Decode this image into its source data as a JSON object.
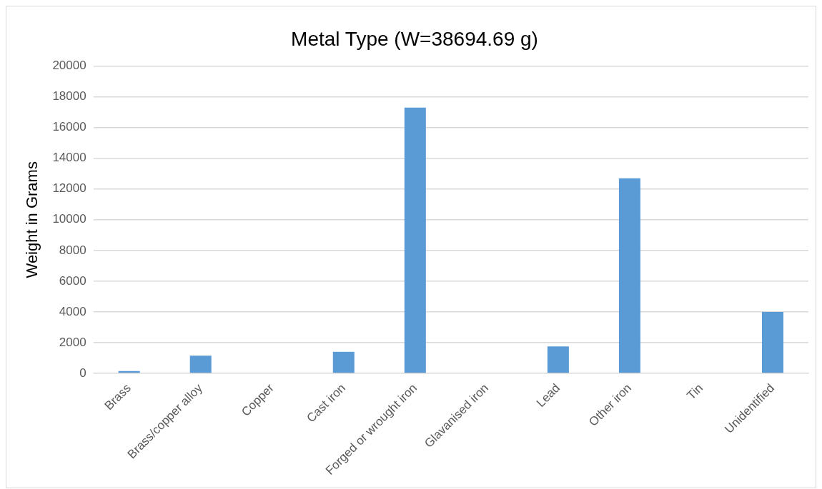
{
  "chart_data": {
    "type": "bar",
    "title": "Metal Type (W=38694.69 g)",
    "ylabel": "Weight in Grams",
    "categories": [
      "Brass",
      "Brass/copper alloy",
      "Copper",
      "Cast iron",
      "Forged or wrought iron",
      "Glavanised iron",
      "Lead",
      "Other iron",
      "Tin",
      "Unidentified"
    ],
    "values": [
      150,
      1150,
      0,
      1400,
      17300,
      0,
      1750,
      12700,
      0,
      4000
    ],
    "color": "#5b9bd5",
    "ylim": [
      0,
      20000
    ],
    "yticks": [
      0,
      2000,
      4000,
      6000,
      8000,
      10000,
      12000,
      14000,
      16000,
      18000,
      20000
    ],
    "grid": "y",
    "legend": false
  }
}
